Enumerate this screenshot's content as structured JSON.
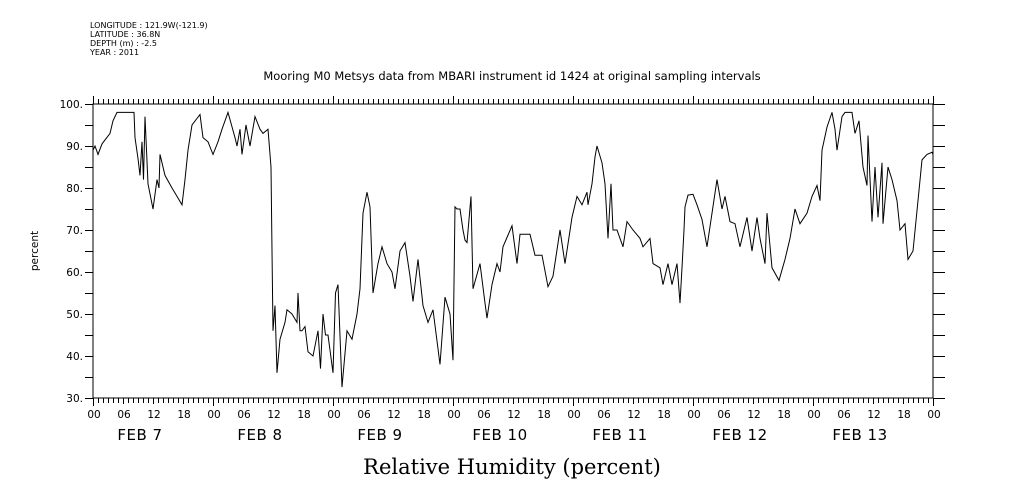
{
  "header": {
    "longitude": "LONGITUDE : 121.9W(-121.9)",
    "latitude": "LATITUDE : 36.8N",
    "depth": "DEPTH (m) : -2.5",
    "year": "YEAR : 2011"
  },
  "chart_data": {
    "type": "line",
    "title": "Mooring M0 Metsys data from MBARI instrument id 1424 at original sampling intervals",
    "xlabel": "Relative Humidity (percent)",
    "ylabel": "percent",
    "ylim": [
      30,
      100
    ],
    "yticks": [
      100,
      90,
      80,
      70,
      60,
      50,
      40,
      30
    ],
    "ytick_labels": [
      "100.",
      "90.",
      "80.",
      "70.",
      "60.",
      "50.",
      "40.",
      "30."
    ],
    "xlim_hours": [
      0,
      168
    ],
    "xtick_labels": [
      "00",
      "06",
      "12",
      "18",
      "00",
      "06",
      "12",
      "18",
      "00",
      "06",
      "12",
      "18",
      "00",
      "06",
      "12",
      "18",
      "00",
      "06",
      "12",
      "18",
      "00",
      "06",
      "12",
      "18",
      "00",
      "06",
      "12",
      "18",
      "00"
    ],
    "day_labels": [
      "FEB  7",
      "FEB  8",
      "FEB  9",
      "FEB 10",
      "FEB 11",
      "FEB 12",
      "FEB 13"
    ],
    "grid": false,
    "series": [
      {
        "name": "Relative Humidity",
        "color": "#000000",
        "x_hours": [
          0,
          0.4,
          1,
          1.8,
          3.4,
          4,
          4.8,
          8.2,
          8.4,
          9,
          9.4,
          9.8,
          10.1,
          10.4,
          11,
          12,
          12.8,
          13.2,
          13.4,
          14.4,
          15.8,
          16.8,
          17.8,
          18.4,
          19,
          19.8,
          21.4,
          22,
          23,
          24,
          25,
          25.8,
          27,
          28.4,
          28.8,
          29.4,
          29.8,
          30.6,
          31.4,
          32.4,
          33.4,
          34,
          35,
          35.6,
          35.8,
          36,
          36.4,
          36.8,
          37.4,
          38.4,
          38.8,
          39.8,
          40.8,
          41,
          41.4,
          41.8,
          42.4,
          43,
          44,
          45,
          45.5,
          46,
          46.5,
          47,
          48,
          48.5,
          49,
          49.8,
          50.8,
          51.8,
          52.8,
          53.4,
          54,
          54.8,
          55.4,
          56,
          57,
          57.8,
          58.8,
          59.8,
          60.4,
          61.4,
          62.4,
          63.4,
          64,
          65,
          66,
          67,
          68,
          69.4,
          70.4,
          71.4,
          72,
          72.4,
          72.8,
          73.4,
          74,
          74.4,
          74.8,
          75.6,
          76,
          77.4,
          78.4,
          78.8,
          79.8,
          80.8,
          81.4,
          82,
          83.8,
          84.8,
          85.4,
          87.4,
          88.4,
          89.8,
          91,
          92,
          93.4,
          94.4,
          95.8,
          96.8,
          97.8,
          98.8,
          99,
          99.8,
          100.4,
          100.8,
          101.8,
          102.4,
          103,
          103.6,
          104,
          104.8,
          106,
          106.8,
          108,
          109.4,
          110,
          111.4,
          112,
          113.4,
          114,
          115,
          115.8,
          116.8,
          117.4,
          117.8,
          118.2,
          118.4,
          119,
          120,
          120.8,
          121.8,
          122.8,
          123.8,
          124.8,
          125.8,
          126.4,
          127.4,
          128.4,
          129.4,
          130.8,
          131.8,
          132.8,
          133.4,
          134.4,
          134.8,
          135.8,
          137.2,
          138.4,
          139.4,
          140.4,
          141.4,
          142.8,
          143.8,
          144.8,
          145.4,
          145.8,
          146.8,
          147.8,
          148.4,
          148.8,
          149.8,
          150.4,
          151.8,
          152.4,
          153.2,
          154,
          154.8,
          155,
          155.8,
          156.4,
          157,
          157.8,
          158,
          159,
          159.8,
          160.8,
          161.4,
          162.4,
          163,
          164,
          165,
          165.8,
          166.8,
          167.8,
          168
        ],
        "values": [
          89,
          90,
          88,
          90.5,
          93,
          96,
          98,
          98,
          92,
          87,
          83,
          91,
          82,
          97,
          81,
          75,
          82,
          80,
          88,
          83,
          80,
          78,
          76,
          82,
          89,
          95,
          97.5,
          92,
          91,
          88,
          91,
          94,
          98,
          92,
          90,
          94,
          88,
          95,
          90,
          97,
          94,
          93,
          94,
          85,
          65,
          46,
          52,
          36,
          44,
          48,
          51,
          50,
          48,
          55,
          46,
          46,
          47,
          41,
          40,
          46,
          37,
          50,
          45,
          45,
          36,
          55,
          57,
          32.6,
          46,
          44,
          50,
          56,
          74,
          79,
          75.5,
          55,
          62,
          66,
          62,
          60,
          56,
          65,
          67,
          59,
          53,
          63,
          52,
          48,
          51,
          38,
          54,
          50,
          39,
          75.5,
          75,
          75,
          70,
          67.6,
          67,
          78,
          56,
          62,
          52.6,
          49,
          57,
          62,
          60,
          66,
          71,
          62,
          69,
          69,
          64,
          64,
          56.5,
          59,
          70,
          62,
          73,
          78,
          76,
          79,
          76,
          81,
          87.4,
          90,
          86,
          81,
          68,
          81,
          70,
          70,
          66,
          72,
          70,
          68,
          66,
          68,
          62,
          61,
          57,
          62,
          57,
          62,
          52.6,
          61,
          70,
          75.5,
          78.3,
          78.5,
          76,
          72.5,
          66,
          74,
          82,
          75,
          78,
          72,
          71.5,
          66,
          73,
          65,
          73,
          68,
          62,
          74,
          61,
          58,
          63,
          68,
          75,
          71.5,
          74,
          78,
          80.6,
          77,
          89,
          94.5,
          98,
          94,
          89,
          97,
          98,
          98,
          93,
          96,
          85,
          80.6,
          92.5,
          72,
          85,
          73,
          86,
          71.5,
          85,
          82,
          77,
          70,
          71.5,
          63,
          65,
          77,
          86.7,
          88,
          88.5,
          88
        ]
      }
    ]
  }
}
